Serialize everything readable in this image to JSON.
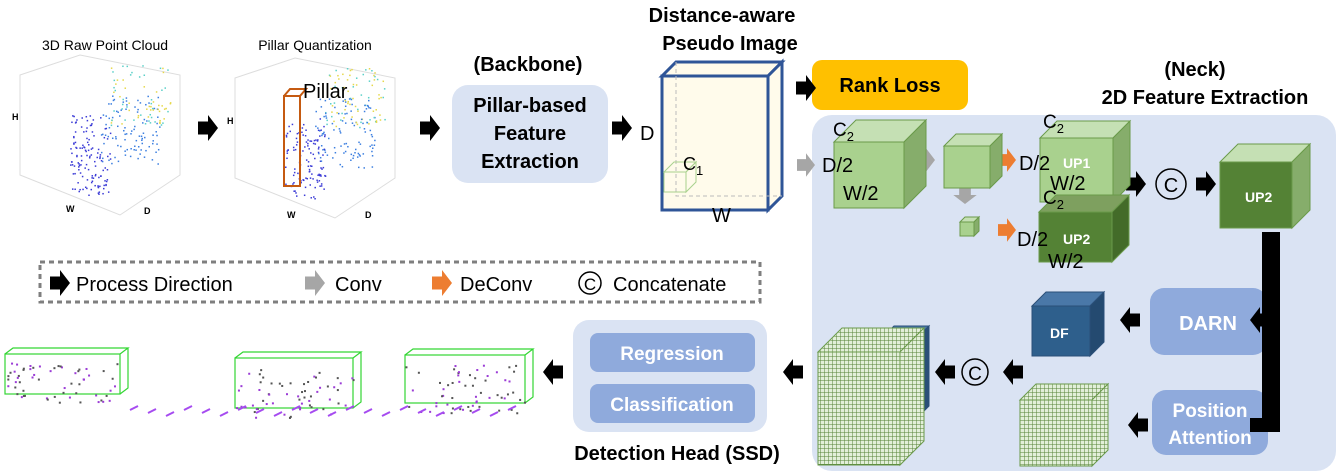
{
  "inputs": {
    "raw_title": "3D Raw Point Cloud",
    "pillar_title": "Pillar Quantization",
    "pillar_label": "Pillar",
    "axis_h": "H",
    "axis_w": "W",
    "axis_d": "D"
  },
  "backbone": {
    "heading": "(Backbone)",
    "lines": [
      "Pillar-based",
      "Feature",
      "Extraction"
    ]
  },
  "pseudo_image": {
    "title_lines": [
      "Distance-aware",
      "Pseudo Image"
    ],
    "d": "D",
    "w": "W",
    "c1": "C",
    "c1_sub": "1"
  },
  "rank_loss": "Rank Loss",
  "neck": {
    "heading": "(Neck)",
    "title": "2D Feature Extraction",
    "c2": "C",
    "c2_sub": "2",
    "d2": "D/2",
    "w2": "W/2",
    "up1": "UP1",
    "up2": "UP2",
    "concat": "C",
    "darn": "DARN",
    "df": "DF",
    "position_attention": [
      "Position",
      "Attention"
    ]
  },
  "legend": {
    "process": "Process Direction",
    "conv": "Conv",
    "deconv": "DeConv",
    "concat_symbol": "C",
    "concat": "Concatenate"
  },
  "head": {
    "regression": "Regression",
    "classification": "Classification",
    "title": "Detection Head (SSD)"
  },
  "colors": {
    "panel": "#dae3f3",
    "button_blue": "#8faadc",
    "rank_loss": "#ffc000",
    "deconv_arrow": "#ed7d31",
    "conv_arrow": "#a6a6a6",
    "light_green": "#a9d18e",
    "dark_green": "#548235",
    "df_blue": "#2e5f8c",
    "pillar": "#c55a11"
  }
}
